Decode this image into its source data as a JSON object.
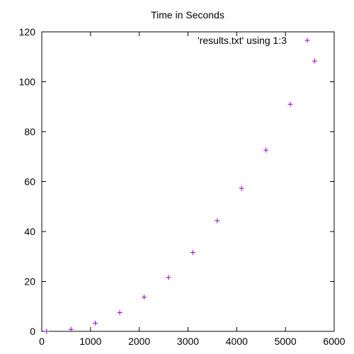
{
  "chart_data": {
    "type": "scatter",
    "title": "Time in Seconds",
    "xlabel": "",
    "ylabel": "",
    "xlim": [
      0,
      6000
    ],
    "ylim": [
      0,
      120
    ],
    "x_ticks": [
      0,
      1000,
      2000,
      3000,
      4000,
      5000,
      6000
    ],
    "y_ticks": [
      0,
      20,
      40,
      60,
      80,
      100,
      120
    ],
    "grid": false,
    "legend_position": "top-right",
    "series": [
      {
        "name": "'results.txt' using 1:3",
        "color": "#9400d3",
        "marker": "plus",
        "points": [
          {
            "x": 100,
            "y": 0
          },
          {
            "x": 600,
            "y": 0.8
          },
          {
            "x": 1100,
            "y": 3.3
          },
          {
            "x": 1600,
            "y": 7.5
          },
          {
            "x": 2100,
            "y": 13.7
          },
          {
            "x": 2600,
            "y": 21.6
          },
          {
            "x": 3100,
            "y": 31.6
          },
          {
            "x": 3600,
            "y": 44.3
          },
          {
            "x": 4100,
            "y": 57.3
          },
          {
            "x": 4600,
            "y": 72.6
          },
          {
            "x": 5100,
            "y": 91.0
          },
          {
            "x": 5600,
            "y": 108.3
          }
        ]
      }
    ]
  }
}
